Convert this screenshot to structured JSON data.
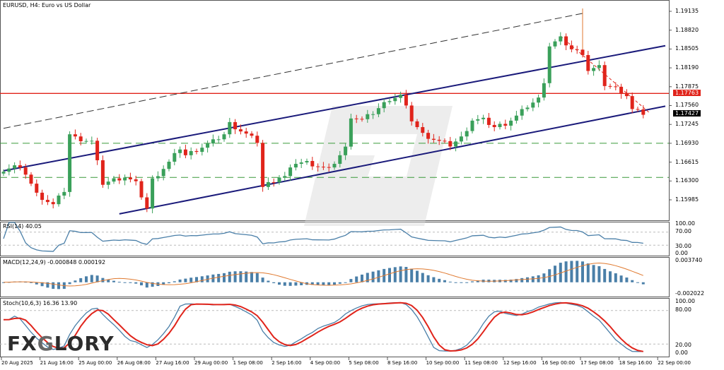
{
  "header": {
    "title": "EURUSD, H4:  Euro vs US Dollar"
  },
  "watermark": {
    "brand": "FXGLORY"
  },
  "price_axis": {
    "ticks": [
      "1.19135",
      "1.18820",
      "1.18505",
      "1.18190",
      "1.17875",
      "1.17560",
      "1.17245",
      "1.16930",
      "1.16615",
      "1.16300",
      "1.15985"
    ],
    "tick_values": [
      1.19135,
      1.1882,
      1.18505,
      1.1819,
      1.17875,
      1.1756,
      1.17245,
      1.1693,
      1.16615,
      1.163,
      1.15985
    ],
    "resistance_label": "1.17763",
    "resistance_value": 1.17763,
    "current_label": "1.17427",
    "current_value": 1.17427,
    "support_levels": [
      1.1693,
      1.1636
    ]
  },
  "colors": {
    "bull": "#3aa05a",
    "bear": "#e0241b",
    "channel": "#1a1a7a",
    "resistance": "#e0241b",
    "support": "#3a9a3a",
    "indicator": "#4a7fa8",
    "signal": "#e07a30",
    "stoch_d": "#e0241b"
  },
  "indicators": {
    "rsi": {
      "label": "RSI(14) 40.05",
      "ticks": [
        "100.00",
        "70.00",
        "30.00",
        "0.00"
      ]
    },
    "macd": {
      "label": "MACD(12,24,9) -0.000848 0.000192",
      "ticks": [
        "0.003740",
        "-0.002022"
      ],
      "max": 0.00374,
      "min": -0.002022
    },
    "stoch": {
      "label": "Stoch(10,6,3) 16.36 13.90",
      "ticks": [
        "100.00",
        "80.00",
        "20.00",
        "0.00"
      ]
    }
  },
  "time_axis": [
    "20 Aug 2025",
    "21 Aug 16:00",
    "25 Aug 00:00",
    "26 Aug 08:00",
    "27 Aug 16:00",
    "29 Aug 00:00",
    "1 Sep 08:00",
    "2 Sep 16:00",
    "4 Sep 00:00",
    "5 Sep 08:00",
    "8 Sep 16:00",
    "10 Sep 00:00",
    "11 Sep 08:00",
    "12 Sep 16:00",
    "16 Sep 00:00",
    "17 Sep 08:00",
    "18 Sep 16:00",
    "22 Sep 00:00"
  ],
  "chart_data": {
    "type": "candlestick",
    "title": "EURUSD, H4",
    "ylim": [
      1.1575,
      1.193
    ],
    "close_keypoints": [
      [
        0,
        1.1649
      ],
      [
        2,
        1.1655
      ],
      [
        4,
        1.1643
      ],
      [
        6,
        1.1608
      ],
      [
        9,
        1.159
      ],
      [
        11,
        1.1614
      ],
      [
        12,
        1.1708
      ],
      [
        13,
        1.1702
      ],
      [
        16,
        1.1696
      ],
      [
        18,
        1.1626
      ],
      [
        20,
        1.1632
      ],
      [
        22,
        1.1637
      ],
      [
        24,
        1.1626
      ],
      [
        26,
        1.1584
      ],
      [
        27,
        1.1632
      ],
      [
        30,
        1.1661
      ],
      [
        32,
        1.1685
      ],
      [
        33,
        1.1673
      ],
      [
        38,
        1.1696
      ],
      [
        40,
        1.1708
      ],
      [
        41,
        1.1726
      ],
      [
        44,
        1.1708
      ],
      [
        46,
        1.1696
      ],
      [
        47,
        1.162
      ],
      [
        50,
        1.1637
      ],
      [
        51,
        1.1637
      ],
      [
        53,
        1.1661
      ],
      [
        55,
        1.1661
      ],
      [
        57,
        1.1655
      ],
      [
        59,
        1.1649
      ],
      [
        61,
        1.1673
      ],
      [
        62,
        1.1685
      ],
      [
        63,
        1.1738
      ],
      [
        65,
        1.1732
      ],
      [
        67,
        1.1744
      ],
      [
        70,
        1.1767
      ],
      [
        72,
        1.1773
      ],
      [
        74,
        1.1732
      ],
      [
        76,
        1.1708
      ],
      [
        79,
        1.1696
      ],
      [
        81,
        1.169
      ],
      [
        83,
        1.1702
      ],
      [
        85,
        1.1732
      ],
      [
        87,
        1.1732
      ],
      [
        89,
        1.172
      ],
      [
        91,
        1.1726
      ],
      [
        93,
        1.1738
      ],
      [
        95,
        1.1755
      ],
      [
        97,
        1.1767
      ],
      [
        98,
        1.1797
      ],
      [
        99,
        1.1856
      ],
      [
        101,
        1.1868
      ],
      [
        103,
        1.185
      ],
      [
        105,
        1.1844
      ],
      [
        106,
        1.1815
      ],
      [
        108,
        1.182
      ],
      [
        109,
        1.1791
      ],
      [
        111,
        1.1785
      ],
      [
        113,
        1.1773
      ],
      [
        114,
        1.1749
      ],
      [
        116,
        1.1743
      ]
    ],
    "channel_upper": [
      [
        0,
        1.1647
      ],
      [
        120,
        1.1856
      ]
    ],
    "channel_lower": [
      [
        21,
        1.1575
      ],
      [
        120,
        1.1755
      ]
    ],
    "outer_dashed": [
      [
        0,
        1.1718
      ],
      [
        105,
        1.191
      ]
    ],
    "down_trendline": [
      [
        101,
        1.1872
      ],
      [
        117,
        1.1745
      ]
    ]
  }
}
